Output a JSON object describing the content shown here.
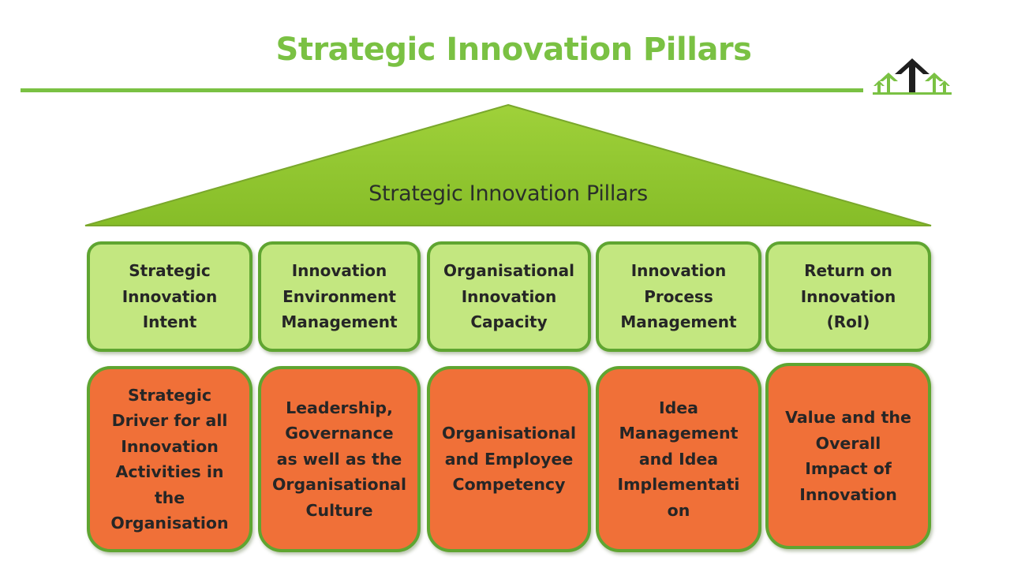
{
  "header": {
    "title": "Strategic Innovation Pillars"
  },
  "roof": {
    "label": "Strategic Innovation Pillars"
  },
  "pillars": [
    {
      "label": "Strategic\nInnovation\nIntent"
    },
    {
      "label": "Innovation\nEnvironment\nManagement"
    },
    {
      "label": "Organisational\nInnovation\nCapacity"
    },
    {
      "label": "Innovation\nProcess\nManagement"
    },
    {
      "label": "Return on\nInnovation\n(RoI)"
    }
  ],
  "foundations": [
    {
      "label": "Strategic\nDriver for all\nInnovation\nActivities in\nthe\nOrganisation"
    },
    {
      "label": "Leadership,\nGovernance\nas well as the\nOrganisational\nCulture"
    },
    {
      "label": "Organisational\nand Employee\nCompetency"
    },
    {
      "label": "Idea\nManagement\nand Idea\nImplementati\non"
    },
    {
      "label": "Value and the\nOverall\nImpact of\nInnovation"
    }
  ],
  "colors": {
    "accent_green": "#7ac143",
    "pillar_fill": "#c3e780",
    "pillar_border": "#5fa531",
    "foundation_fill": "#f07038",
    "logo_dark": "#1f1f1f"
  },
  "logo": {
    "icon": "arrows-up-logo-icon"
  }
}
